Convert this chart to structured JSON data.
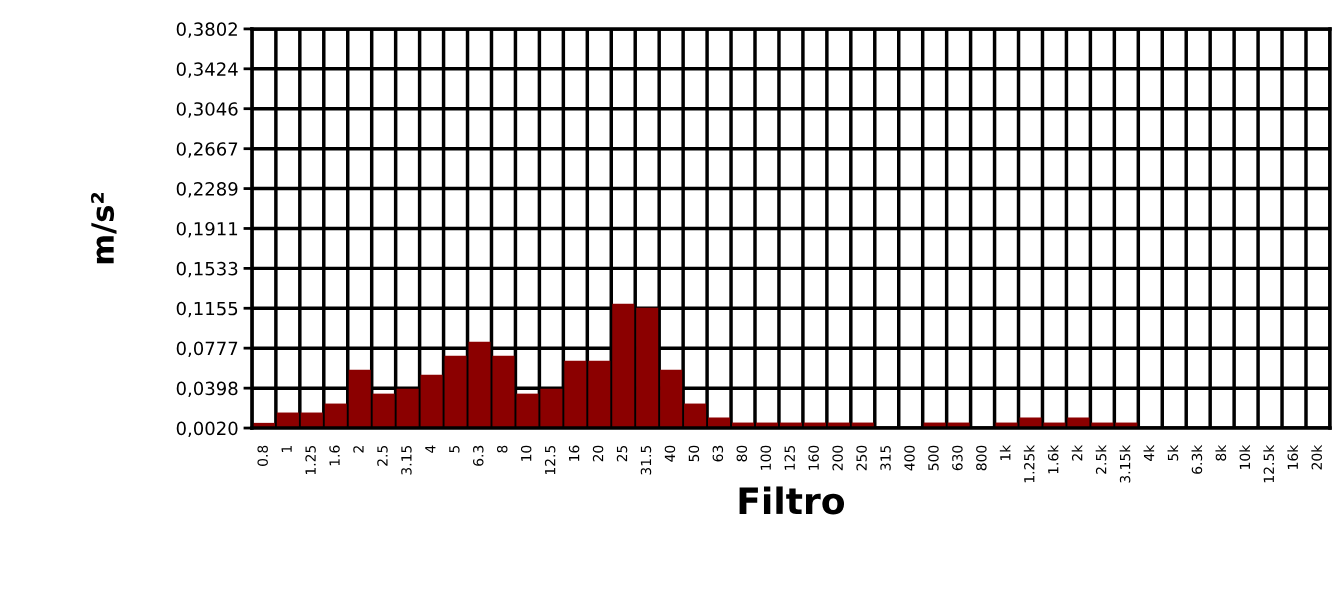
{
  "chart_data": {
    "type": "bar",
    "xlabel": "Filtro",
    "ylabel": "m/s²",
    "categories": [
      "0.8",
      "1",
      "1.25",
      "1.6",
      "2",
      "2.5",
      "3.15",
      "4",
      "5",
      "6.3",
      "8",
      "10",
      "12.5",
      "16",
      "20",
      "25",
      "31.5",
      "40",
      "50",
      "63",
      "80",
      "100",
      "125",
      "160",
      "200",
      "250",
      "315",
      "400",
      "500",
      "630",
      "800",
      "1k",
      "1.25k",
      "1.6k",
      "2k",
      "2.5k",
      "3.15k",
      "4k",
      "5k",
      "6.3k",
      "8k",
      "10k",
      "12.5k",
      "16k",
      "20k"
    ],
    "values": [
      0.0069,
      0.0167,
      0.0167,
      0.0252,
      0.0573,
      0.0346,
      0.0393,
      0.0526,
      0.0706,
      0.0838,
      0.0706,
      0.0346,
      0.0393,
      0.0658,
      0.0658,
      0.1197,
      0.1159,
      0.0573,
      0.0252,
      0.012,
      0.0072,
      0.0072,
      0.0072,
      0.0072,
      0.0072,
      0.0072,
      null,
      null,
      0.0072,
      0.0072,
      null,
      0.0072,
      0.012,
      0.0072,
      0.012,
      0.0072,
      0.0072,
      null,
      null,
      null,
      null,
      null,
      null,
      null,
      null
    ],
    "color": "#8b0000",
    "ylim": [
      0.002,
      0.3802
    ],
    "yticks": [
      {
        "value": 0.002,
        "label": "0,0020"
      },
      {
        "value": 0.0398,
        "label": "0,0398"
      },
      {
        "value": 0.0777,
        "label": "0,0777"
      },
      {
        "value": 0.1155,
        "label": "0,1155"
      },
      {
        "value": 0.1533,
        "label": "0,1533"
      },
      {
        "value": 0.1911,
        "label": "0,1911"
      },
      {
        "value": 0.2289,
        "label": "0,2289"
      },
      {
        "value": 0.2667,
        "label": "0,2667"
      },
      {
        "value": 0.3046,
        "label": "0,3046"
      },
      {
        "value": 0.3424,
        "label": "0,3424"
      },
      {
        "value": 0.3802,
        "label": "0,3802"
      }
    ],
    "grid": true
  }
}
